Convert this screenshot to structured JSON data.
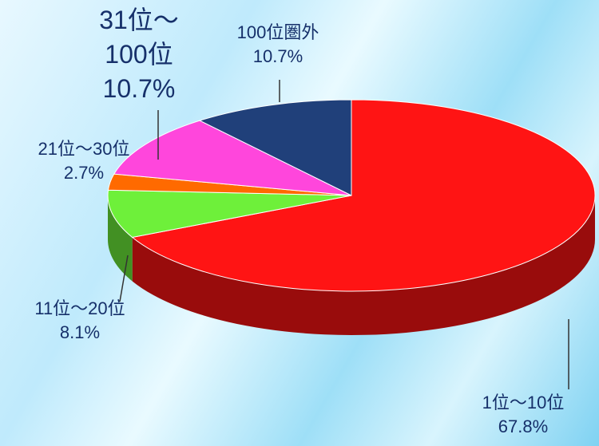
{
  "chart_data": {
    "type": "pie",
    "categories": [
      "1位～10位",
      "11位～20位",
      "21位～30位",
      "31位～100位",
      "100位圏外"
    ],
    "values": [
      67.8,
      8.1,
      2.7,
      10.7,
      10.7
    ],
    "value_labels": [
      "67.8%",
      "8.1%",
      "2.7%",
      "10.7%",
      "10.7%"
    ],
    "colors": [
      "#ff1414",
      "#6ef03a",
      "#ff6a00",
      "#ff46dc",
      "#20407a"
    ]
  }
}
